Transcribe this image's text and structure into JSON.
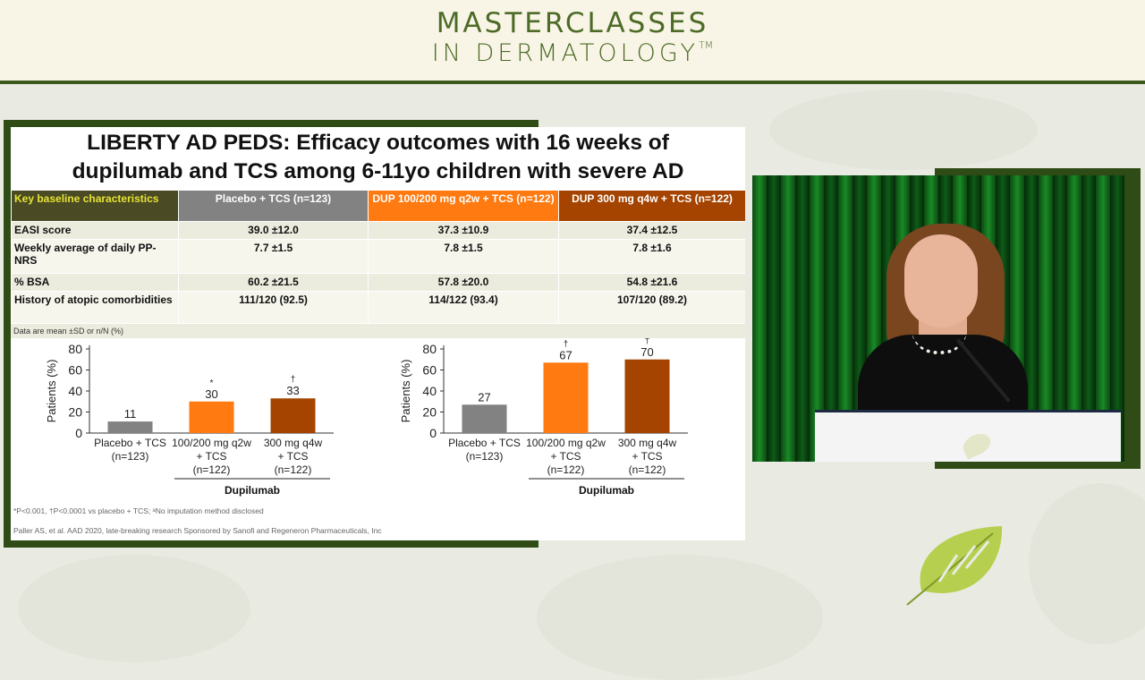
{
  "brand": {
    "line1": "MASTERCLASSES",
    "line2": "IN DERMATOLOGY",
    "tm": "TM"
  },
  "slide": {
    "title_line1": "LIBERTY AD PEDS: Efficacy outcomes with 16 weeks of",
    "title_line2": "dupilumab and TCS among 6-11yo children with severe AD",
    "table": {
      "headers": [
        "Key baseline characteristics",
        "Placebo + TCS (n=123)",
        "DUP 100/200 mg q2w + TCS (n=122)",
        "DUP 300 mg q4w + TCS (n=122)"
      ],
      "rows": [
        {
          "label": "EASI score",
          "values": [
            "39.0 ±12.0",
            "37.3 ±10.9",
            "37.4 ±12.5"
          ]
        },
        {
          "label": "Weekly average of daily PP-NRS",
          "values": [
            "7.7 ±1.5",
            "7.8 ±1.5",
            "7.8 ±1.6"
          ]
        },
        {
          "label": "% BSA",
          "values": [
            "60.2 ±21.5",
            "57.8 ±20.0",
            "54.8 ±21.6"
          ]
        },
        {
          "label": "History of atopic comorbidities",
          "values": [
            "111/120 (92.5)",
            "114/122 (93.4)",
            "107/120 (89.2)"
          ]
        }
      ],
      "note": "Data are mean ±SD or n/N (%)"
    },
    "footnote1": "*P<0.001, †P<0.0001 vs placebo + TCS; ᵃNo imputation method disclosed",
    "footnote2": "Paller AS, et al. AAD 2020, late-breaking research Sponsored by Sanofi and Regeneron Pharmaceuticals, Inc"
  },
  "colors": {
    "placebo": "#828282",
    "dup_q2w": "#ff7a10",
    "dup_q4w": "#a44400"
  },
  "chart_data": [
    {
      "type": "bar",
      "ylabel": "Patients (%)",
      "ylim": [
        0,
        80
      ],
      "yticks": [
        0,
        20,
        40,
        60,
        80
      ],
      "categories": [
        [
          "Placebo + TCS",
          "(n=123)"
        ],
        [
          "100/200 mg q2w",
          "+ TCS",
          "(n=122)"
        ],
        [
          "300 mg q4w",
          "+ TCS",
          "(n=122)"
        ]
      ],
      "values": [
        11,
        30,
        33
      ],
      "markers": [
        "",
        "*",
        "†"
      ],
      "group_label": "Dupilumab"
    },
    {
      "type": "bar",
      "ylabel": "Patients (%)",
      "ylim": [
        0,
        80
      ],
      "yticks": [
        0,
        20,
        40,
        60,
        80
      ],
      "categories": [
        [
          "Placebo + TCS",
          "(n=123)"
        ],
        [
          "100/200 mg q2w",
          "+ TCS",
          "(n=122)"
        ],
        [
          "300 mg q4w",
          "+ TCS",
          "(n=122)"
        ]
      ],
      "values": [
        27,
        67,
        70
      ],
      "markers": [
        "",
        "†",
        "†"
      ],
      "group_label": "Dupilumab"
    }
  ]
}
